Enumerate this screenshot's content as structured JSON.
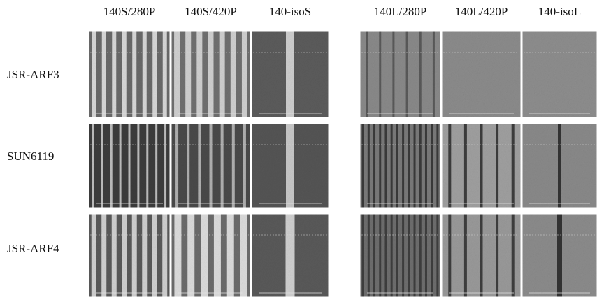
{
  "figure": {
    "column_headers": [
      "140S/280P",
      "140S/420P",
      "140-isoS",
      "140L/280P",
      "140L/420P",
      "140-isoL"
    ],
    "row_labels": [
      "JSR-ARF3",
      "SUN6119",
      "JSR-ARF4"
    ]
  }
}
